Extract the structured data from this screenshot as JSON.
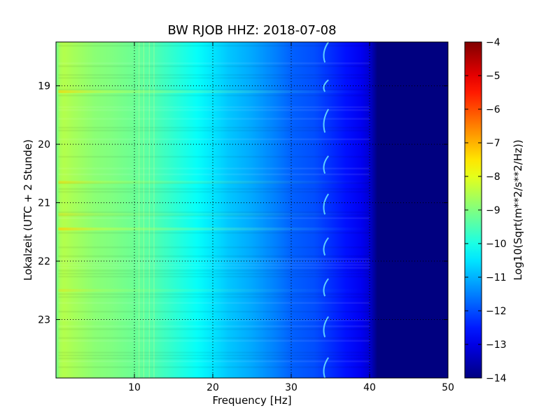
{
  "chart_data": {
    "type": "heatmap",
    "title": "BW RJOB HHZ: 2018-07-08",
    "xlabel": "Frequency [Hz]",
    "ylabel": "Lokalzeit (UTC + 2 Stunde)",
    "xlim": [
      0,
      50
    ],
    "ylim": [
      18.25,
      24.0
    ],
    "y_inverted": true,
    "grid": true,
    "x_ticks": [
      10,
      20,
      30,
      40,
      50
    ],
    "y_ticks": [
      19,
      20,
      21,
      22,
      23
    ],
    "colormap": "jet",
    "colorbar": {
      "label": "Log10(Sqrt(m**2/s**2/Hz))",
      "min": -14,
      "max": -4,
      "ticks": [
        -4,
        -5,
        -6,
        -7,
        -8,
        -9,
        -10,
        -11,
        -12,
        -13,
        -14
      ],
      "tick_labels": [
        "−4",
        "−5",
        "−6",
        "−7",
        "−8",
        "−9",
        "−10",
        "−11",
        "−12",
        "−13",
        "−14"
      ]
    },
    "spectrum_profile": {
      "frequency_hz": [
        0,
        0.5,
        1,
        2,
        3,
        5,
        7,
        10,
        12,
        15,
        18,
        20,
        22,
        25,
        28,
        30,
        33,
        35,
        37,
        39,
        40,
        41,
        45,
        50
      ],
      "log10_psd": [
        -9.2,
        -8.6,
        -8.5,
        -8.6,
        -8.7,
        -8.9,
        -9.0,
        -9.2,
        -9.4,
        -9.8,
        -10.2,
        -10.5,
        -10.8,
        -11.1,
        -11.5,
        -11.8,
        -12.0,
        -12.3,
        -12.6,
        -12.9,
        -13.2,
        -14.0,
        -14.0,
        -14.0
      ]
    },
    "noise_bursts": [
      {
        "time": 19.1,
        "strength": 0.6
      },
      {
        "time": 20.65,
        "strength": 0.5
      },
      {
        "time": 21.45,
        "strength": 0.7
      },
      {
        "time": 21.2,
        "strength": 0.3
      },
      {
        "time": 22.5,
        "strength": 0.3
      }
    ],
    "tonal_arcs": [
      {
        "time_start": 18.25,
        "time_end": 18.6,
        "freq_hz": 34.3
      },
      {
        "time_start": 18.9,
        "time_end": 19.1,
        "freq_hz": 34.3
      },
      {
        "time_start": 19.4,
        "time_end": 19.8,
        "freq_hz": 34.3
      },
      {
        "time_start": 20.2,
        "time_end": 20.5,
        "freq_hz": 34.3
      },
      {
        "time_start": 20.85,
        "time_end": 21.2,
        "freq_hz": 34.3
      },
      {
        "time_start": 21.6,
        "time_end": 21.9,
        "freq_hz": 34.3
      },
      {
        "time_start": 22.3,
        "time_end": 22.6,
        "freq_hz": 34.3
      },
      {
        "time_start": 22.95,
        "time_end": 23.3,
        "freq_hz": 34.3
      },
      {
        "time_start": 23.65,
        "time_end": 24.0,
        "freq_hz": 34.3
      }
    ]
  }
}
